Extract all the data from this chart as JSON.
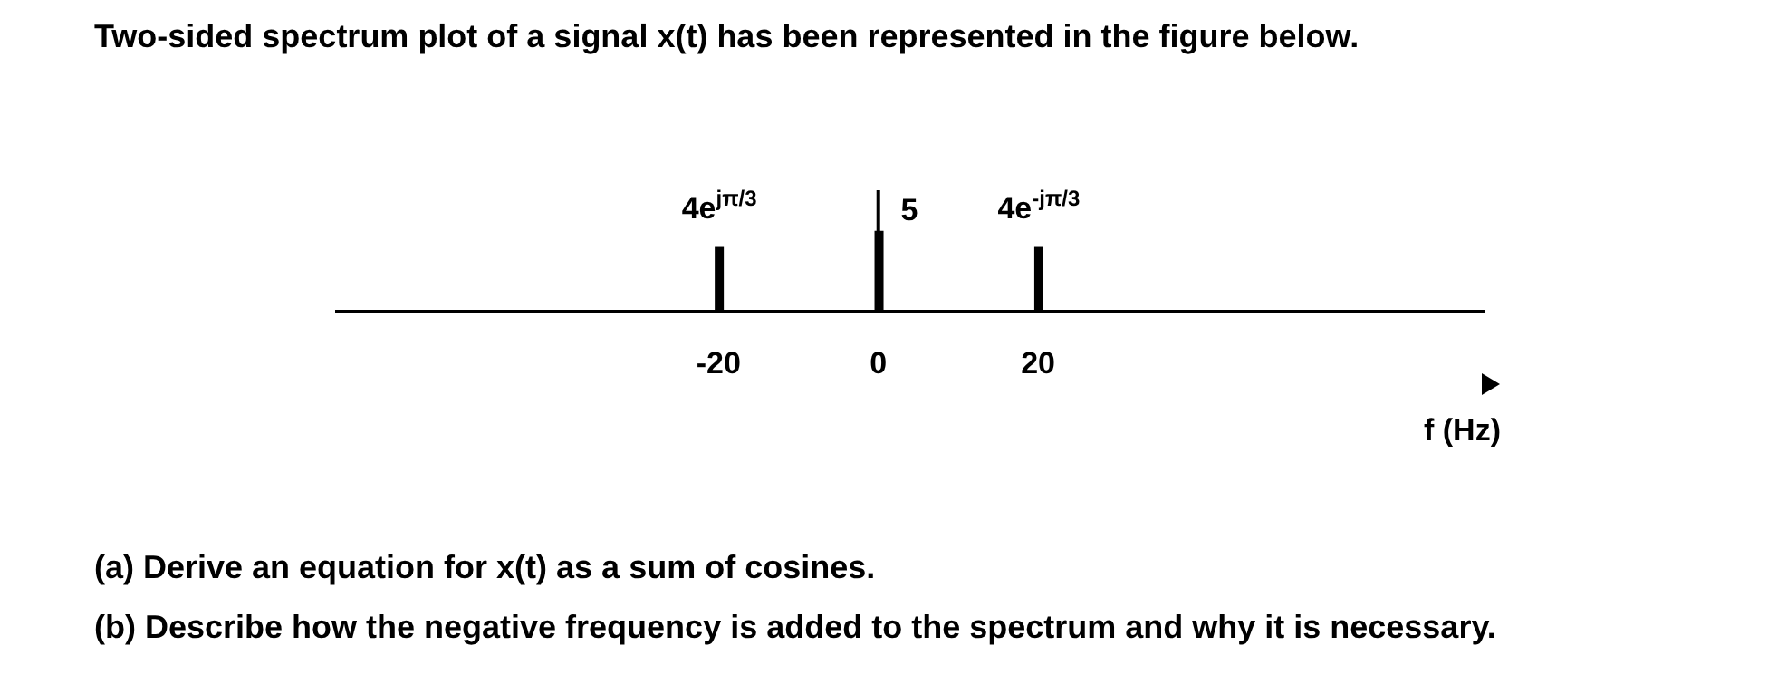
{
  "chart_data": {
    "type": "bar",
    "title": "Two-sided spectrum plot of a signal x(t) has been represented in the figure below.",
    "x": [
      -20,
      0,
      20
    ],
    "values": [
      4,
      5,
      4
    ],
    "tick_labels": "x",
    "color": "#000000",
    "value_labels": [
      "4e$^{jπ/3}$",
      "5",
      "4e$^{-jπ/3}$"
    ],
    "xlabel": "f (Hz)",
    "xlim": [
      -68,
      76
    ],
    "xticks": [
      -20,
      0,
      20
    ],
    "ref_lines": [
      {
        "axis": "x",
        "value": 0,
        "color": "#000000"
      }
    ],
    "grid": false,
    "legend": false,
    "annotations": [
      "(a) Derive an equation for x(t) as a sum of cosines.",
      "(b) Describe how the negative frequency is added to the spectrum and why it is necessary."
    ]
  }
}
